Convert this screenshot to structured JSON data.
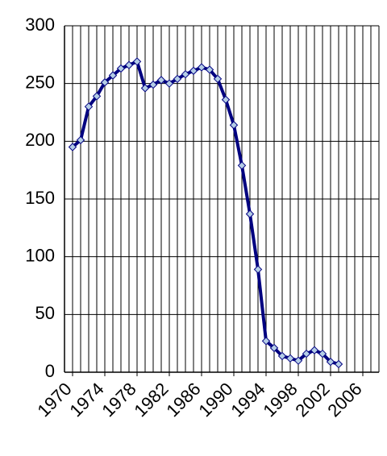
{
  "chart_data": {
    "type": "line",
    "x": [
      1970,
      1971,
      1972,
      1973,
      1974,
      1975,
      1976,
      1977,
      1978,
      1979,
      1980,
      1981,
      1982,
      1983,
      1984,
      1985,
      1986,
      1987,
      1988,
      1989,
      1990,
      1991,
      1992,
      1993,
      1994,
      1995,
      1996,
      1997,
      1998,
      1999,
      2000,
      2001,
      2002,
      2003
    ],
    "series": [
      {
        "color": "#000080",
        "marker_color": "#b4cde6",
        "values": [
          195,
          201,
          230,
          239,
          251,
          257,
          263,
          266,
          269,
          246,
          249,
          253,
          250,
          254,
          258,
          261,
          264,
          262,
          254,
          236,
          214,
          179,
          137,
          89,
          27,
          21,
          14,
          12,
          10,
          16,
          19,
          16,
          9,
          7
        ]
      }
    ],
    "xlim": [
      1969,
      2008
    ],
    "xticks": [
      1970,
      1974,
      1978,
      1982,
      1986,
      1990,
      1994,
      1998,
      2002,
      2006
    ],
    "x_grid_step": 1,
    "ylim": [
      0,
      300
    ],
    "yticks": [
      0,
      50,
      100,
      150,
      200,
      250,
      300
    ],
    "grid": true
  }
}
